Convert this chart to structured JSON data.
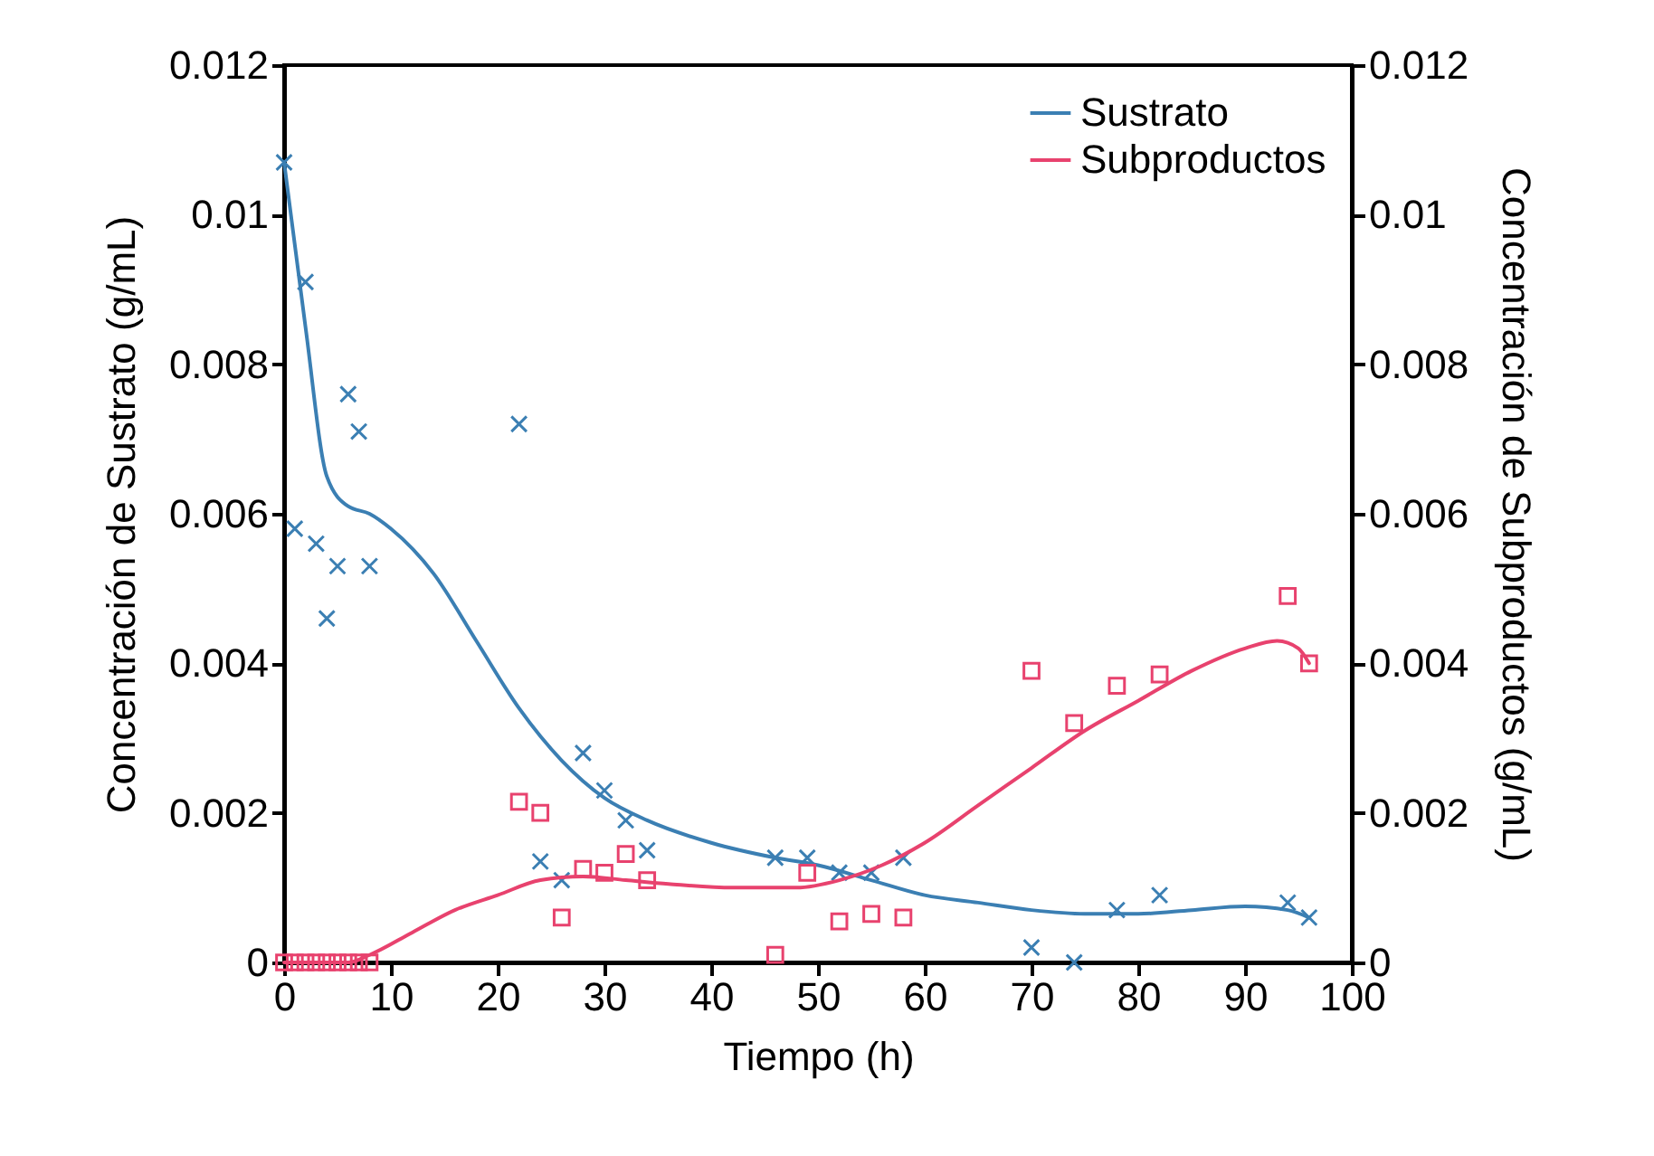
{
  "chart_data": {
    "type": "scatter",
    "xlabel": "Tiempo (h)",
    "ylabel": "Concentración de Sustrato (g/mL)",
    "y2label": "Concentración de Subproductos (g/mL)",
    "xlim": [
      0,
      100
    ],
    "xticks": [
      0,
      10,
      20,
      30,
      40,
      50,
      60,
      70,
      80,
      90,
      100
    ],
    "ylim": [
      0,
      0.012
    ],
    "yticks": [
      0,
      0.002,
      0.004,
      0.006,
      0.008,
      0.01,
      0.012
    ],
    "y2lim": [
      0,
      0.012
    ],
    "y2ticks": [
      0,
      0.002,
      0.004,
      0.006,
      0.008,
      0.01,
      0.012
    ],
    "grid": false,
    "legend": "top right",
    "series": [
      {
        "marker": "cross",
        "color": "#3b7fb3",
        "x": [
          0,
          1,
          2,
          3,
          4,
          5,
          6,
          7,
          8,
          22,
          24,
          26,
          28,
          30,
          32,
          34,
          46,
          49,
          52,
          55,
          58,
          70,
          74,
          78,
          82,
          94,
          96
        ],
        "values": [
          0.0107,
          0.0058,
          0.0091,
          0.0056,
          0.0046,
          0.0053,
          0.0076,
          0.0071,
          0.0053,
          0.0072,
          0.00135,
          0.0011,
          0.0028,
          0.0023,
          0.0019,
          0.0015,
          0.0014,
          0.0014,
          0.0012,
          0.0012,
          0.0014,
          0.0002,
          0,
          0.0007,
          0.0009,
          0.0008,
          0.0006
        ]
      },
      {
        "marker": "square",
        "axis": "y2",
        "color": "#e8426e",
        "x": [
          0,
          1,
          2,
          3,
          4,
          5,
          6,
          7,
          8,
          22,
          24,
          26,
          28,
          30,
          32,
          34,
          46,
          49,
          52,
          55,
          58,
          70,
          74,
          78,
          82,
          94,
          96
        ],
        "values": [
          0,
          0,
          0,
          0,
          0,
          0,
          0,
          0,
          0,
          0.00215,
          0.002,
          0.0006,
          0.00125,
          0.0012,
          0.00145,
          0.0011,
          0.0001,
          0.0012,
          0.00055,
          0.00065,
          0.0006,
          0.0039,
          0.0032,
          0.0037,
          0.00385,
          0.0049,
          0.004
        ]
      },
      {
        "type": "line",
        "name": "Sustrato",
        "color": "#3b7fb3",
        "x": [
          0,
          2,
          4,
          6,
          8,
          10,
          14,
          18,
          22,
          26,
          30,
          34,
          40,
          46,
          50,
          55,
          60,
          65,
          70,
          75,
          80,
          85,
          90,
          94,
          96
        ],
        "values": [
          0.0107,
          0.0085,
          0.0065,
          0.0061,
          0.006,
          0.0058,
          0.0052,
          0.0043,
          0.0034,
          0.0027,
          0.0022,
          0.0019,
          0.0016,
          0.0014,
          0.0013,
          0.0011,
          0.0009,
          0.0008,
          0.0007,
          0.00065,
          0.00065,
          0.0007,
          0.00075,
          0.0007,
          0.0006
        ]
      },
      {
        "type": "line",
        "name": "Subproductos",
        "axis": "y2",
        "color": "#e8426e",
        "x": [
          0,
          6,
          8,
          12,
          16,
          20,
          24,
          28,
          32,
          36,
          42,
          48,
          52,
          56,
          60,
          65,
          70,
          75,
          80,
          85,
          90,
          93,
          95,
          96
        ],
        "values": [
          0,
          0,
          0.0001,
          0.0004,
          0.0007,
          0.0009,
          0.0011,
          0.00115,
          0.0011,
          0.00105,
          0.001,
          0.001,
          0.0011,
          0.0013,
          0.0016,
          0.0021,
          0.0026,
          0.0031,
          0.0035,
          0.0039,
          0.0042,
          0.0043,
          0.0042,
          0.004
        ]
      }
    ]
  }
}
